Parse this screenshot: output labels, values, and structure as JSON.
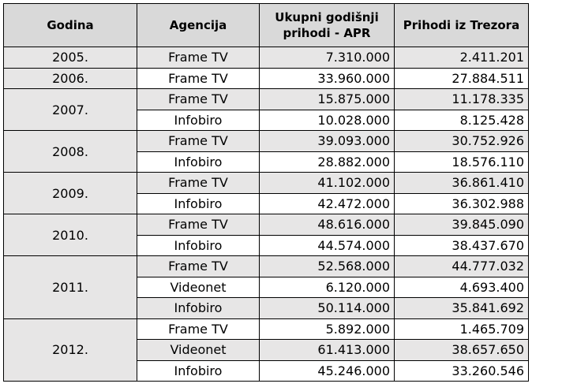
{
  "headers": [
    "Godina",
    "Agencija",
    "Ukupni godišnji prihodi - APR",
    "Prihodi iz Trezora"
  ],
  "groups": [
    {
      "year": "2005.",
      "rows": [
        [
          "Frame TV",
          "7.310.000",
          "2.411.201"
        ]
      ]
    },
    {
      "year": "2006.",
      "rows": [
        [
          "Frame TV",
          "33.960.000",
          "27.884.511"
        ]
      ]
    },
    {
      "year": "2007.",
      "rows": [
        [
          "Frame TV",
          "15.875.000",
          "11.178.335"
        ],
        [
          "Infobiro",
          "10.028.000",
          "8.125.428"
        ]
      ]
    },
    {
      "year": "2008.",
      "rows": [
        [
          "Frame TV",
          "39.093.000",
          "30.752.926"
        ],
        [
          "Infobiro",
          "28.882.000",
          "18.576.110"
        ]
      ]
    },
    {
      "year": "2009.",
      "rows": [
        [
          "Frame TV",
          "41.102.000",
          "36.861.410"
        ],
        [
          "Infobiro",
          "42.472.000",
          "36.302.988"
        ]
      ]
    },
    {
      "year": "2010.",
      "rows": [
        [
          "Frame TV",
          "48.616.000",
          "39.845.090"
        ],
        [
          "Infobiro",
          "44.574.000",
          "38.437.670"
        ]
      ]
    },
    {
      "year": "2011.",
      "rows": [
        [
          "Frame TV",
          "52.568.000",
          "44.777.032"
        ],
        [
          "Videonet",
          "6.120.000",
          "4.693.400"
        ],
        [
          "Infobiro",
          "50.114.000",
          "35.841.692"
        ]
      ]
    },
    {
      "year": "2012.",
      "rows": [
        [
          "Frame TV",
          "5.892.000",
          "1.465.709"
        ],
        [
          "Videonet",
          "61.413.000",
          "38.657.650"
        ],
        [
          "Infobiro",
          "45.246.000",
          "33.260.546"
        ]
      ]
    }
  ],
  "colors": {
    "header_bg": "#d9d9d9",
    "shade_bg": "#e7e6e6",
    "border": "#000000"
  }
}
